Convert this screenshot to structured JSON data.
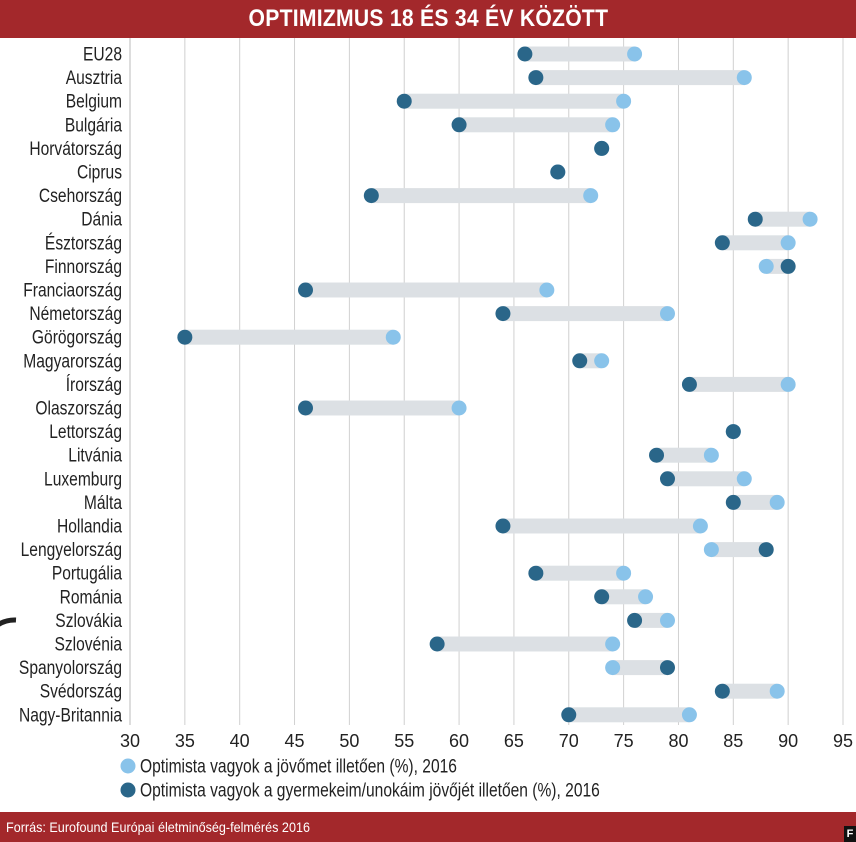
{
  "title": "OPTIMIZMUS 18 ÉS 34 ÉV KÖZÖTT",
  "source": "Forrás: Eurofound Európai életminőség-felmérés 2016",
  "colors": {
    "header": "#a3282b",
    "light_dot": "#89c3ea",
    "dark_dot": "#2a6689",
    "bar": "#dce0e4",
    "grid": "#d0d0d0"
  },
  "chart_data": {
    "type": "dumbbell",
    "title": "OPTIMIZMUS 18 ÉS 34 ÉV KÖZÖTT",
    "xlim": [
      30,
      95
    ],
    "xticks": [
      30,
      35,
      40,
      45,
      50,
      55,
      60,
      65,
      70,
      75,
      80,
      85,
      90,
      95
    ],
    "grid": "vertical",
    "legend_position": "bottom-left",
    "categories": [
      "EU28",
      "Ausztria",
      "Belgium",
      "Bulgária",
      "Horvátország",
      "Ciprus",
      "Csehország",
      "Dánia",
      "Észtország",
      "Finnország",
      "Franciaország",
      "Németország",
      "Görögország",
      "Magyarország",
      "Írország",
      "Olaszország",
      "Lettország",
      "Litvánia",
      "Luxemburg",
      "Málta",
      "Hollandia",
      "Lengyelország",
      "Portugália",
      "Románia",
      "Szlovákia",
      "Szlovénia",
      "Spanyolország",
      "Svédország",
      "Nagy-Britannia"
    ],
    "series": [
      {
        "name": "Optimista vagyok a jövőmet illetően (%), 2016",
        "color": "#89c3ea",
        "values": [
          76,
          86,
          75,
          74,
          73,
          69,
          72,
          92,
          90,
          88,
          68,
          79,
          54,
          73,
          90,
          60,
          85,
          83,
          86,
          89,
          82,
          83,
          75,
          77,
          79,
          74,
          74,
          89,
          81
        ]
      },
      {
        "name": "Optimista vagyok a gyermekeim/unokáim jövőjét illetően (%), 2016",
        "color": "#2a6689",
        "values": [
          66,
          67,
          55,
          60,
          73,
          69,
          52,
          87,
          84,
          90,
          46,
          64,
          35,
          71,
          81,
          46,
          85,
          78,
          79,
          85,
          64,
          88,
          67,
          73,
          76,
          58,
          79,
          84,
          70
        ]
      }
    ]
  }
}
